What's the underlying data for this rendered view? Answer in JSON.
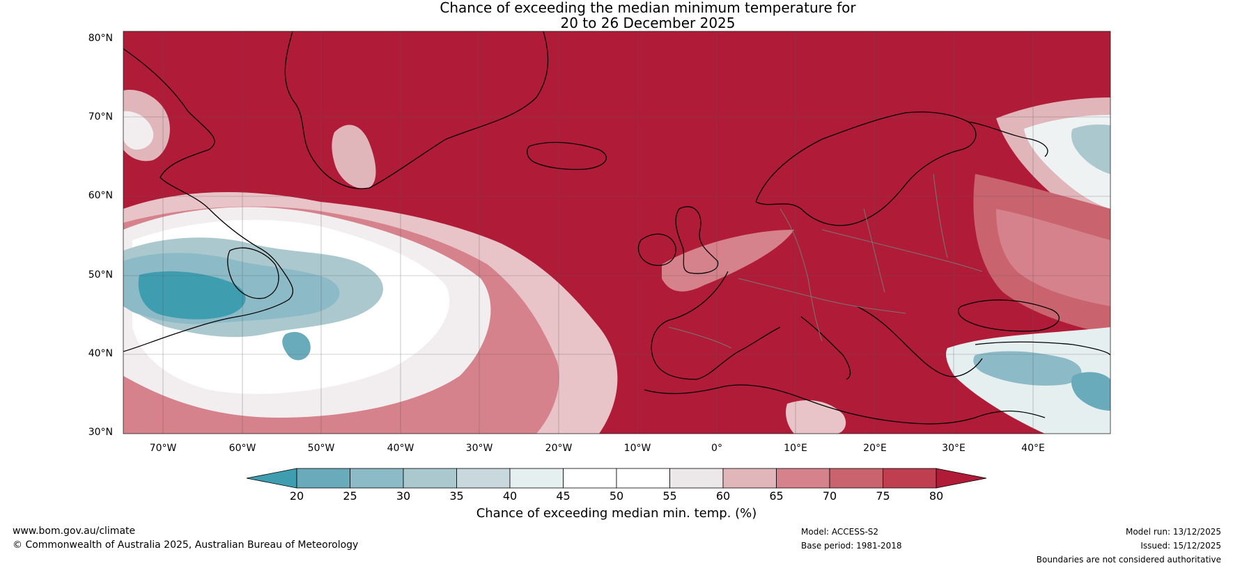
{
  "title_line1": "Chance of exceeding the median minimum temperature for",
  "title_line2": "20 to 26 December 2025",
  "lat_labels": [
    "80°N",
    "70°N",
    "60°N",
    "50°N",
    "40°N",
    "30°N"
  ],
  "lon_labels": [
    "70°W",
    "60°W",
    "50°W",
    "40°W",
    "30°W",
    "20°W",
    "10°W",
    "0°",
    "10°E",
    "20°E",
    "30°E",
    "40°E"
  ],
  "colorbar": {
    "ticks": [
      "20",
      "25",
      "30",
      "35",
      "40",
      "45",
      "50",
      "55",
      "60",
      "65",
      "70",
      "75",
      "80"
    ],
    "colors": [
      "#3f9db0",
      "#69abbb",
      "#8cbac6",
      "#abc8ce",
      "#c9d8dc",
      "#e6eff0",
      "#ffffff",
      "#ffffff",
      "#ece8ea",
      "#e0b6bb",
      "#d5828c",
      "#c9646f",
      "#bf3f50",
      "#b01c37"
    ],
    "label": "Chance of exceeding median min. temp. (%)"
  },
  "colors": {
    "high": "#b01c37",
    "low": "#3f9db0",
    "neutral": "#ffffff"
  },
  "footer": {
    "website": "www.bom.gov.au/climate",
    "copyright": "© Commonwealth of Australia 2025, Australian Bureau of Meteorology",
    "model": "Model: ACCESS-S2",
    "base_period": "Base period: 1981-2018",
    "model_run": "Model run: 13/12/2025",
    "issued": "Issued: 15/12/2025",
    "disclaimer": "Boundaries are not considered authoritative"
  }
}
